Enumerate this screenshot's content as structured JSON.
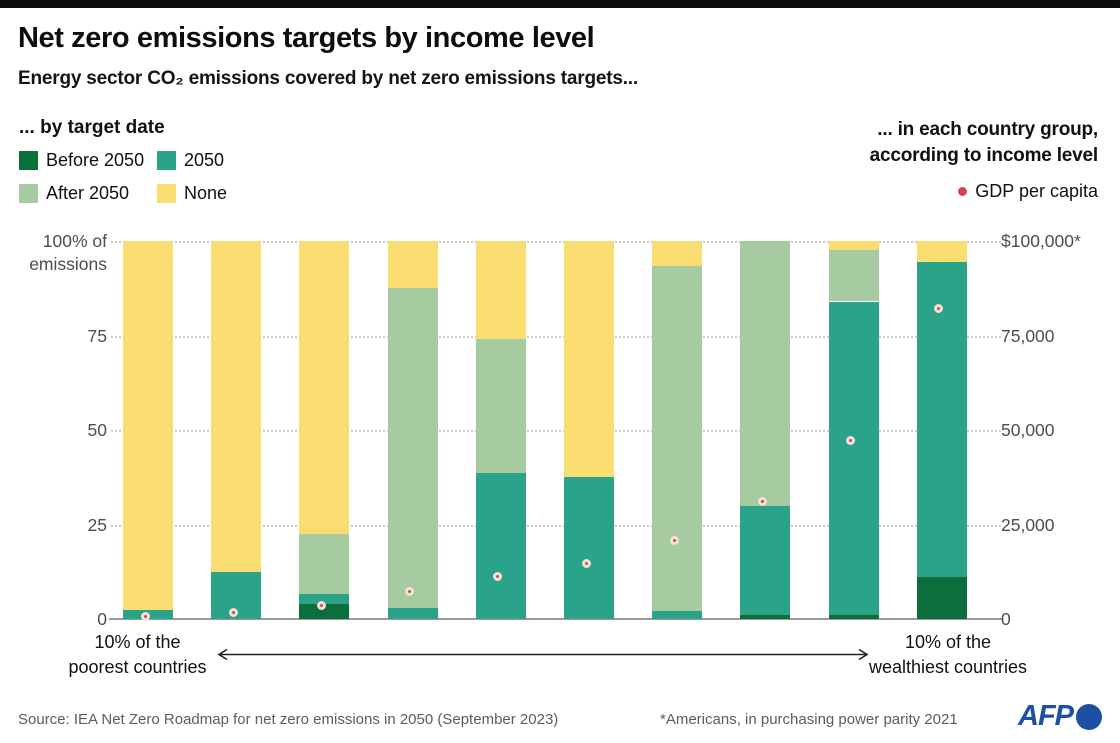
{
  "header": {
    "title": "Net zero emissions targets by income level",
    "subtitle": "Energy sector CO₂ emissions covered by net zero emissions targets..."
  },
  "legend_left": {
    "title": "... by target date",
    "items": [
      {
        "label": "Before 2050",
        "color": "#0b6e3b"
      },
      {
        "label": "2050",
        "color": "#2ba28a"
      },
      {
        "label": "After 2050",
        "color": "#a7cba0"
      },
      {
        "label": "None",
        "color": "#fadd71"
      }
    ]
  },
  "legend_right": {
    "line1": "... in each country group,",
    "line2": "according to income level",
    "gdp_label": "GDP per capita",
    "gdp_dot_color": "#d8415a"
  },
  "chart_data": {
    "type": "bar",
    "stacked": true,
    "grid": "dotted horizontal",
    "categories": [
      "decile 1",
      "decile 2",
      "decile 3",
      "decile 4",
      "decile 5",
      "decile 6",
      "decile 7",
      "decile 8",
      "decile 9",
      "decile 10"
    ],
    "series": [
      {
        "name": "Before 2050",
        "color": "#0b6e3b",
        "values": [
          0,
          0,
          4,
          0,
          0,
          0,
          0,
          1,
          1,
          11
        ]
      },
      {
        "name": "2050",
        "color": "#2ba28a",
        "values": [
          2.5,
          12.5,
          2.5,
          3,
          38.5,
          37.5,
          2,
          29,
          83,
          83.5
        ]
      },
      {
        "name": "After 2050",
        "color": "#a7cba0",
        "values": [
          0,
          0,
          16,
          84.5,
          35.5,
          0,
          91.5,
          70,
          13.5,
          0
        ]
      },
      {
        "name": "None",
        "color": "#fadd71",
        "values": [
          97.5,
          87.5,
          77.5,
          12.5,
          26,
          62.5,
          6.5,
          0,
          2.5,
          5.5
        ]
      }
    ],
    "gdp_series": {
      "name": "GDP per capita",
      "dot_color": "#d8415a",
      "ring_color": "#f0e3d4",
      "values_usd": [
        1500,
        2500,
        4500,
        8000,
        12000,
        15500,
        21500,
        32000,
        48000,
        83000
      ]
    },
    "left_axis": {
      "ticks": [
        {
          "value": 100,
          "label": "100% of\nemissions"
        },
        {
          "value": 75,
          "label": "75"
        },
        {
          "value": 50,
          "label": "50"
        },
        {
          "value": 25,
          "label": "25"
        },
        {
          "value": 0,
          "label": "0"
        }
      ],
      "range": [
        0,
        100
      ]
    },
    "right_axis": {
      "ticks": [
        {
          "value": 100,
          "label": "$100,000*"
        },
        {
          "value": 75,
          "label": "75,000"
        },
        {
          "value": 50,
          "label": "50,000"
        },
        {
          "value": 25,
          "label": "25,000"
        },
        {
          "value": 0,
          "label": "0"
        }
      ],
      "range_usd": [
        0,
        100000
      ]
    },
    "x_axis": {
      "left_label": "10% of the\npoorest countries",
      "right_label": "10% of the\nwealthiest countries"
    }
  },
  "footer": {
    "source": "Source: IEA Net Zero Roadmap for net zero emissions in 2050 (September 2023)",
    "note": "*Americans, in purchasing power parity 2021",
    "logo_text": "AFP",
    "logo_color": "#1d4fa3"
  }
}
